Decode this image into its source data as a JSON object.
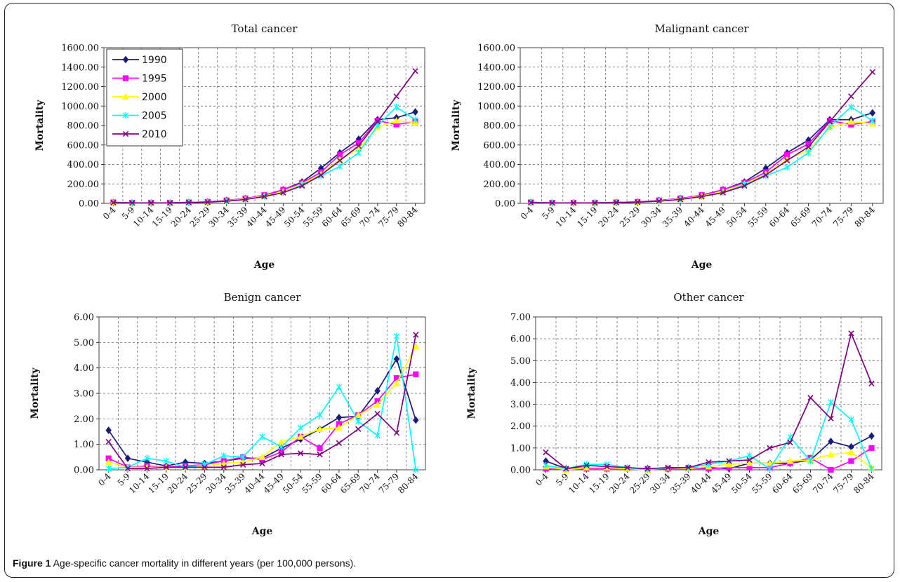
{
  "caption": {
    "label": "Figure 1",
    "text": "Age-specific cancer mortality in different years (per 100,000 persons)."
  },
  "colors": {
    "1990": "#1a1a80",
    "1995": "#ff00ff",
    "2000": "#ffff00",
    "2005": "#00ffff",
    "2010": "#800080"
  },
  "chart_data": [
    {
      "type": "line",
      "title": "Total cancer",
      "xlabel": "Age",
      "ylabel": "Mortality",
      "ylim": [
        0,
        1600
      ],
      "yticks": [
        "0.00",
        "200.00",
        "400.00",
        "600.00",
        "800.00",
        "1000.00",
        "1200.00",
        "1400.00",
        "1600.00"
      ],
      "grid": true,
      "legend": "top-left",
      "categories": [
        "0-4",
        "5-9",
        "10-14",
        "15-19",
        "20-24",
        "25-29",
        "30-34",
        "35-39",
        "40-44",
        "45-49",
        "50-54",
        "55-59",
        "60-64",
        "65-69",
        "70-74",
        "75-79",
        "80-84"
      ],
      "series": [
        {
          "name": "1990",
          "marker": "diamond",
          "values": [
            10,
            5,
            5,
            5,
            10,
            15,
            30,
            50,
            80,
            140,
            220,
            360,
            520,
            660,
            860,
            880,
            940
          ]
        },
        {
          "name": "1995",
          "marker": "square",
          "values": [
            10,
            5,
            5,
            5,
            10,
            15,
            30,
            50,
            85,
            140,
            210,
            320,
            500,
            620,
            850,
            810,
            840
          ]
        },
        {
          "name": "2000",
          "marker": "triangle",
          "values": [
            8,
            5,
            5,
            5,
            8,
            12,
            25,
            45,
            75,
            120,
            200,
            300,
            450,
            560,
            780,
            850,
            830
          ]
        },
        {
          "name": "2005",
          "marker": "asterisk",
          "values": [
            8,
            5,
            5,
            5,
            8,
            12,
            22,
            40,
            70,
            110,
            190,
            280,
            380,
            520,
            800,
            990,
            860
          ]
        },
        {
          "name": "2010",
          "marker": "x",
          "values": [
            8,
            5,
            5,
            5,
            8,
            12,
            22,
            40,
            70,
            110,
            180,
            290,
            440,
            590,
            840,
            1100,
            1360
          ]
        }
      ]
    },
    {
      "type": "line",
      "title": "Malignant cancer",
      "xlabel": "Age",
      "ylabel": "Mortality",
      "ylim": [
        0,
        1600
      ],
      "yticks": [
        "0.00",
        "200.00",
        "400.00",
        "600.00",
        "800.00",
        "1000.00",
        "1200.00",
        "1400.00",
        "1600.00"
      ],
      "grid": true,
      "categories": [
        "0-4",
        "5-9",
        "10-14",
        "15-19",
        "20-24",
        "25-29",
        "30-34",
        "35-39",
        "40-44",
        "45-49",
        "50-54",
        "55-59",
        "60-64",
        "65-69",
        "70-74",
        "75-79",
        "80-84"
      ],
      "series": [
        {
          "name": "1990",
          "marker": "diamond",
          "values": [
            10,
            5,
            5,
            5,
            10,
            15,
            30,
            50,
            80,
            140,
            220,
            360,
            520,
            650,
            860,
            860,
            930
          ]
        },
        {
          "name": "1995",
          "marker": "square",
          "values": [
            10,
            5,
            5,
            5,
            10,
            15,
            30,
            50,
            85,
            140,
            210,
            320,
            500,
            610,
            850,
            810,
            840
          ]
        },
        {
          "name": "2000",
          "marker": "triangle",
          "values": [
            8,
            5,
            5,
            5,
            8,
            12,
            25,
            45,
            75,
            120,
            200,
            300,
            450,
            550,
            780,
            840,
            820
          ]
        },
        {
          "name": "2005",
          "marker": "asterisk",
          "values": [
            8,
            5,
            5,
            5,
            8,
            12,
            22,
            40,
            70,
            110,
            190,
            280,
            370,
            520,
            790,
            990,
            850
          ]
        },
        {
          "name": "2010",
          "marker": "x",
          "values": [
            8,
            5,
            5,
            5,
            8,
            12,
            22,
            40,
            70,
            110,
            180,
            290,
            440,
            580,
            840,
            1100,
            1350
          ]
        }
      ]
    },
    {
      "type": "line",
      "title": "Benign cancer",
      "xlabel": "Age",
      "ylabel": "Mortality",
      "ylim": [
        0,
        6
      ],
      "yticks": [
        "0.00",
        "1.00",
        "2.00",
        "3.00",
        "4.00",
        "5.00",
        "6.00"
      ],
      "grid": true,
      "categories": [
        "0-4",
        "5-9",
        "10-14",
        "15-19",
        "20-24",
        "25-29",
        "30-34",
        "35-39",
        "40-44",
        "45-49",
        "50-54",
        "55-59",
        "60-64",
        "65-69",
        "70-74",
        "75-79",
        "80-84"
      ],
      "series": [
        {
          "name": "1990",
          "marker": "diamond",
          "values": [
            1.55,
            0.45,
            0.3,
            0.15,
            0.3,
            0.25,
            0.35,
            0.45,
            0.45,
            0.85,
            1.2,
            1.6,
            2.05,
            2.1,
            3.1,
            4.35,
            1.95
          ]
        },
        {
          "name": "1995",
          "marker": "square",
          "values": [
            0.45,
            0.1,
            0.15,
            0.1,
            0.15,
            0.2,
            0.35,
            0.5,
            0.4,
            0.7,
            1.3,
            0.85,
            1.8,
            2.15,
            2.7,
            3.6,
            3.75
          ]
        },
        {
          "name": "2000",
          "marker": "triangle",
          "values": [
            0.3,
            0.1,
            0.1,
            0.1,
            0.1,
            0.15,
            0.25,
            0.3,
            0.5,
            1.1,
            1.3,
            1.6,
            1.65,
            2.15,
            2.55,
            3.4,
            4.85
          ]
        },
        {
          "name": "2005",
          "marker": "asterisk",
          "values": [
            0.05,
            0.1,
            0.45,
            0.35,
            0.1,
            0.2,
            0.55,
            0.5,
            1.3,
            0.9,
            1.65,
            2.15,
            3.25,
            1.9,
            1.35,
            5.25,
            0.0
          ]
        },
        {
          "name": "2010",
          "marker": "x",
          "values": [
            1.1,
            0.05,
            0.05,
            0.1,
            0.1,
            0.1,
            0.1,
            0.2,
            0.25,
            0.6,
            0.65,
            0.6,
            1.05,
            1.6,
            2.2,
            1.45,
            5.3
          ]
        }
      ]
    },
    {
      "type": "line",
      "title": "Other cancer",
      "xlabel": "Age",
      "ylabel": "Mortality",
      "ylim": [
        0,
        7
      ],
      "yticks": [
        "0.00",
        "1.00",
        "2.00",
        "3.00",
        "4.00",
        "5.00",
        "6.00",
        "7.00"
      ],
      "grid": true,
      "categories": [
        "0-4",
        "5-9",
        "10-14",
        "15-19",
        "20-24",
        "25-29",
        "30-34",
        "35-39",
        "40-44",
        "45-49",
        "50-54",
        "55-59",
        "60-64",
        "65-69",
        "70-74",
        "75-79",
        "80-84"
      ],
      "series": [
        {
          "name": "1990",
          "marker": "diamond",
          "values": [
            0.4,
            0.05,
            0.1,
            0.1,
            0.05,
            0.05,
            0.05,
            0.1,
            0.1,
            0.05,
            0.3,
            0.3,
            0.3,
            0.45,
            1.3,
            1.05,
            1.55
          ]
        },
        {
          "name": "1995",
          "marker": "square",
          "values": [
            0.05,
            0.0,
            0.05,
            0.05,
            0.05,
            0.0,
            0.05,
            0.05,
            0.05,
            0.1,
            0.1,
            0.1,
            0.3,
            0.55,
            0.0,
            0.4,
            1.0
          ]
        },
        {
          "name": "2000",
          "marker": "triangle",
          "values": [
            0.15,
            0.0,
            0.1,
            0.1,
            0.05,
            0.0,
            0.1,
            0.05,
            0.15,
            0.25,
            0.3,
            0.3,
            0.4,
            0.45,
            0.7,
            0.8,
            0.1
          ]
        },
        {
          "name": "2005",
          "marker": "asterisk",
          "values": [
            0.2,
            0.05,
            0.25,
            0.25,
            0.1,
            0.0,
            0.1,
            0.1,
            0.25,
            0.4,
            0.65,
            0.05,
            1.5,
            0.4,
            3.1,
            2.3,
            0.05
          ]
        },
        {
          "name": "2010",
          "marker": "x",
          "values": [
            0.8,
            0.05,
            0.2,
            0.15,
            0.1,
            0.05,
            0.1,
            0.1,
            0.35,
            0.4,
            0.45,
            1.0,
            1.25,
            3.3,
            2.35,
            6.25,
            3.95
          ]
        }
      ]
    }
  ]
}
